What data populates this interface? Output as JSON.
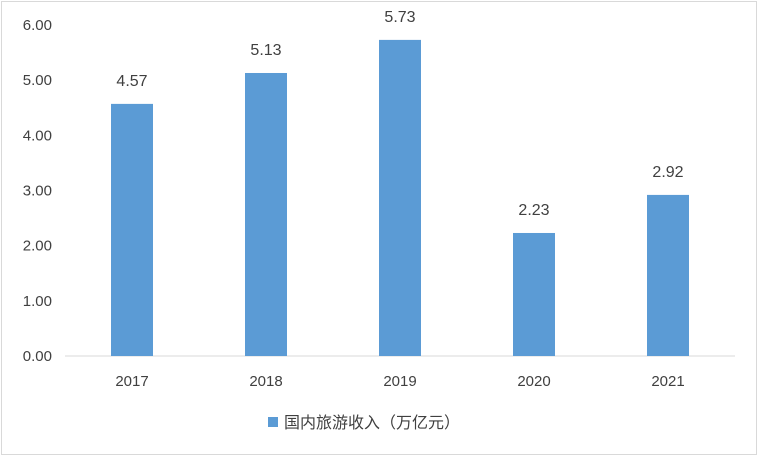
{
  "chart_data": {
    "type": "bar",
    "categories": [
      "2017",
      "2018",
      "2019",
      "2020",
      "2021"
    ],
    "series": [
      {
        "name": "国内旅游收入（万亿元）",
        "values": [
          4.57,
          5.13,
          5.73,
          2.23,
          2.92
        ]
      }
    ],
    "data_labels": [
      "4.57",
      "5.13",
      "5.73",
      "2.23",
      "2.92"
    ],
    "y_ticks": [
      "0.00",
      "1.00",
      "2.00",
      "3.00",
      "4.00",
      "5.00",
      "6.00"
    ],
    "ylim": [
      0,
      6
    ],
    "title": "",
    "xlabel": "",
    "ylabel": "",
    "grid": false,
    "legend_position": "bottom",
    "colors": {
      "bar": "#5b9bd5",
      "axis": "#d9d9d9",
      "text": "#404040"
    }
  }
}
